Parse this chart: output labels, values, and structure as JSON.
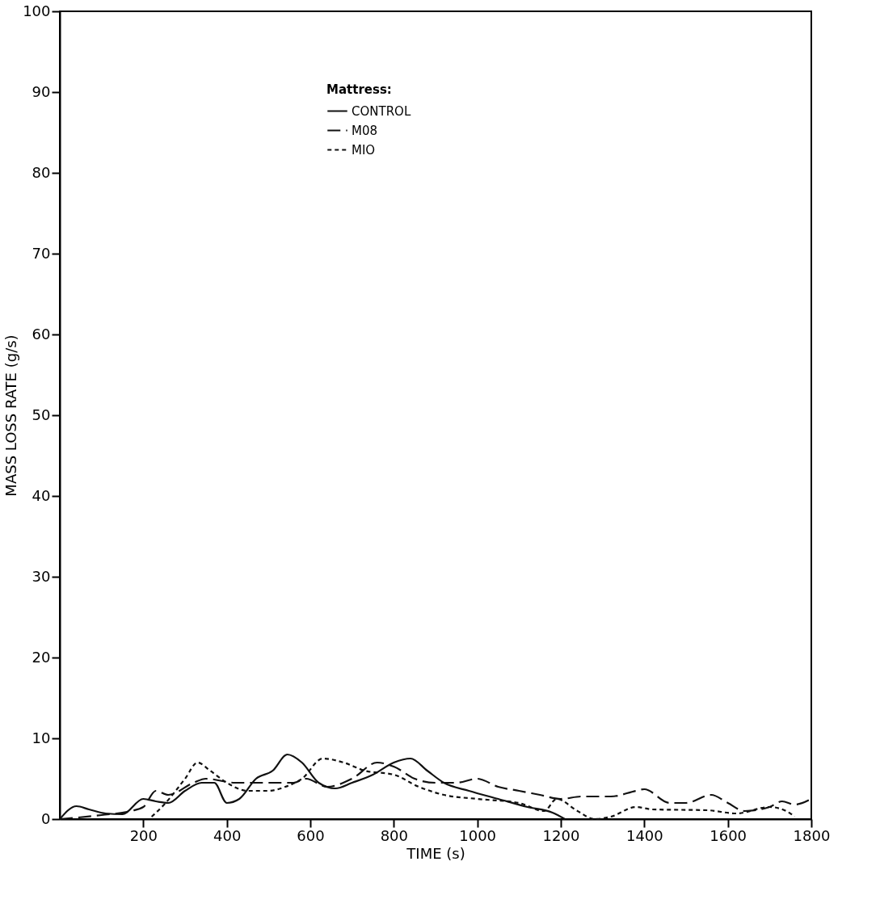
{
  "chart_data": {
    "type": "line",
    "xlabel": "TIME (s)",
    "ylabel": "MASS LOSS RATE (g/s)",
    "legend_title": "Mattress:",
    "legend": "top",
    "xlim": [
      0,
      1800
    ],
    "xticks": [
      200,
      400,
      600,
      800,
      1000,
      1200,
      1400,
      1600,
      1800
    ],
    "ylim": [
      0,
      100
    ],
    "yticks": [
      0,
      10,
      20,
      30,
      40,
      50,
      60,
      70,
      80,
      90,
      100
    ],
    "grid": false,
    "series": [
      {
        "name": "CONTROL",
        "color": "#111111",
        "line_style": "solid",
        "x": [
          0,
          40,
          70,
          110,
          150,
          200,
          230,
          260,
          300,
          340,
          370,
          400,
          430,
          470,
          510,
          545,
          580,
          620,
          660,
          700,
          750,
          800,
          840,
          880,
          920,
          980,
          1050,
          1120,
          1180,
          1210
        ],
        "values": [
          0,
          1.6,
          1.2,
          0.7,
          0.6,
          2.5,
          2.2,
          2,
          3.5,
          4.5,
          4.5,
          2,
          2.5,
          5,
          6,
          8,
          7,
          4.5,
          3.8,
          4.5,
          5.5,
          7,
          7.5,
          6,
          4.5,
          3.5,
          2.5,
          1.5,
          0.8,
          0
        ]
      },
      {
        "name": "M08",
        "color": "#111111",
        "line_style": "dashed",
        "x": [
          0,
          100,
          170,
          200,
          230,
          260,
          320,
          350,
          420,
          470,
          520,
          560,
          590,
          640,
          700,
          760,
          800,
          850,
          900,
          950,
          1000,
          1050,
          1100,
          1150,
          1200,
          1250,
          1320,
          1380,
          1400,
          1460,
          1500,
          1560,
          1600,
          1640,
          1700,
          1730,
          1760,
          1800
        ],
        "values": [
          0,
          0.5,
          1,
          1.5,
          3.5,
          3,
          4.5,
          5,
          4.5,
          4.5,
          4.5,
          4.5,
          5,
          4,
          5,
          7,
          6.5,
          5,
          4.5,
          4.5,
          5,
          4,
          3.5,
          3,
          2.5,
          2.8,
          2.8,
          3.5,
          3.7,
          2,
          2,
          3,
          2,
          1,
          1.5,
          2.2,
          1.8,
          2.5
        ]
      },
      {
        "name": "MIO",
        "color": "#111111",
        "line_style": "dotted",
        "x": [
          220,
          250,
          300,
          330,
          360,
          400,
          450,
          500,
          540,
          580,
          630,
          680,
          730,
          800,
          860,
          920,
          1000,
          1100,
          1160,
          1190,
          1240,
          1280,
          1320,
          1380,
          1420,
          1550,
          1620,
          1700,
          1740,
          1760
        ],
        "values": [
          0.3,
          1.8,
          5,
          7,
          6,
          4.5,
          3.5,
          3.5,
          4,
          5,
          7.5,
          7,
          6,
          5.5,
          4,
          3,
          2.5,
          2,
          1,
          2.5,
          1,
          0,
          0.3,
          1.5,
          1.2,
          1.1,
          0.7,
          1.5,
          1,
          0.3
        ]
      }
    ]
  }
}
